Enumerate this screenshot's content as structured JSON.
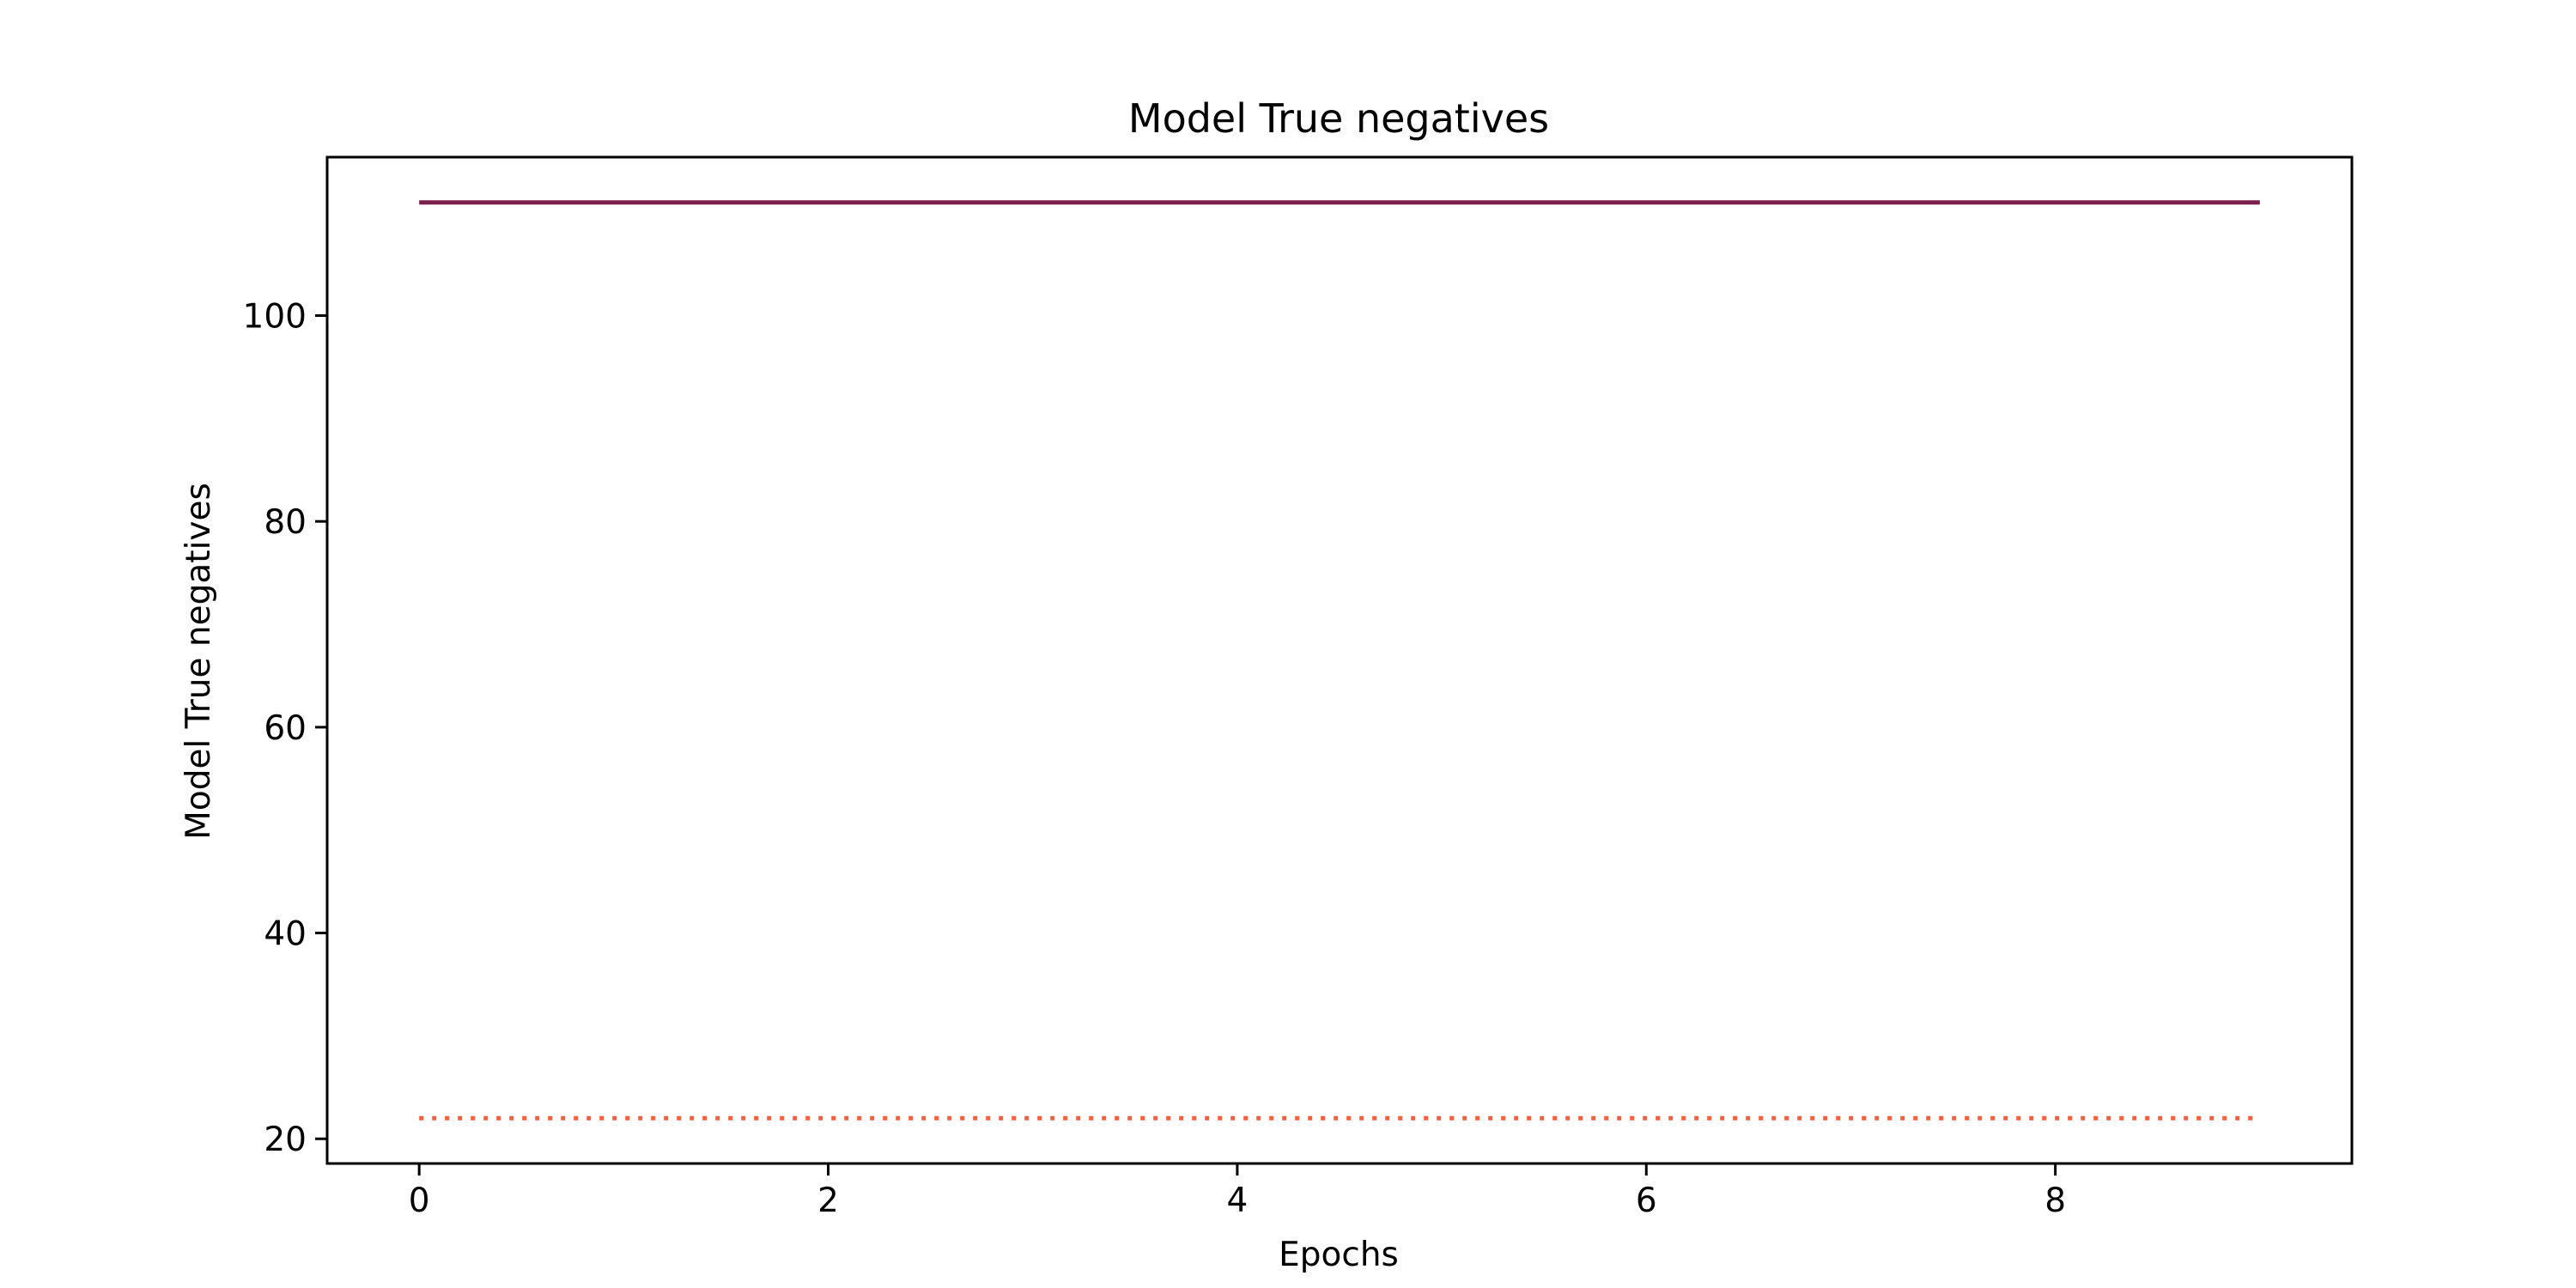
{
  "chart_data": {
    "type": "line",
    "title": "Model True negatives",
    "xlabel": "Epochs",
    "ylabel": "Model True negatives",
    "xlim": [
      -0.45,
      9.45
    ],
    "ylim": [
      17.6,
      115.4
    ],
    "xticks": [
      0,
      2,
      4,
      6,
      8
    ],
    "yticks": [
      20,
      40,
      60,
      80,
      100
    ],
    "grid": false,
    "x": [
      0,
      1,
      2,
      3,
      4,
      5,
      6,
      7,
      8,
      9
    ],
    "series": [
      {
        "values": [
          111,
          111,
          111,
          111,
          111,
          111,
          111,
          111,
          111,
          111
        ],
        "color": "#7b1f4e",
        "style": "solid"
      },
      {
        "values": [
          22,
          22,
          22,
          22,
          22,
          22,
          22,
          22,
          22,
          22
        ],
        "color": "#f4603d",
        "style": "dotted"
      }
    ]
  }
}
